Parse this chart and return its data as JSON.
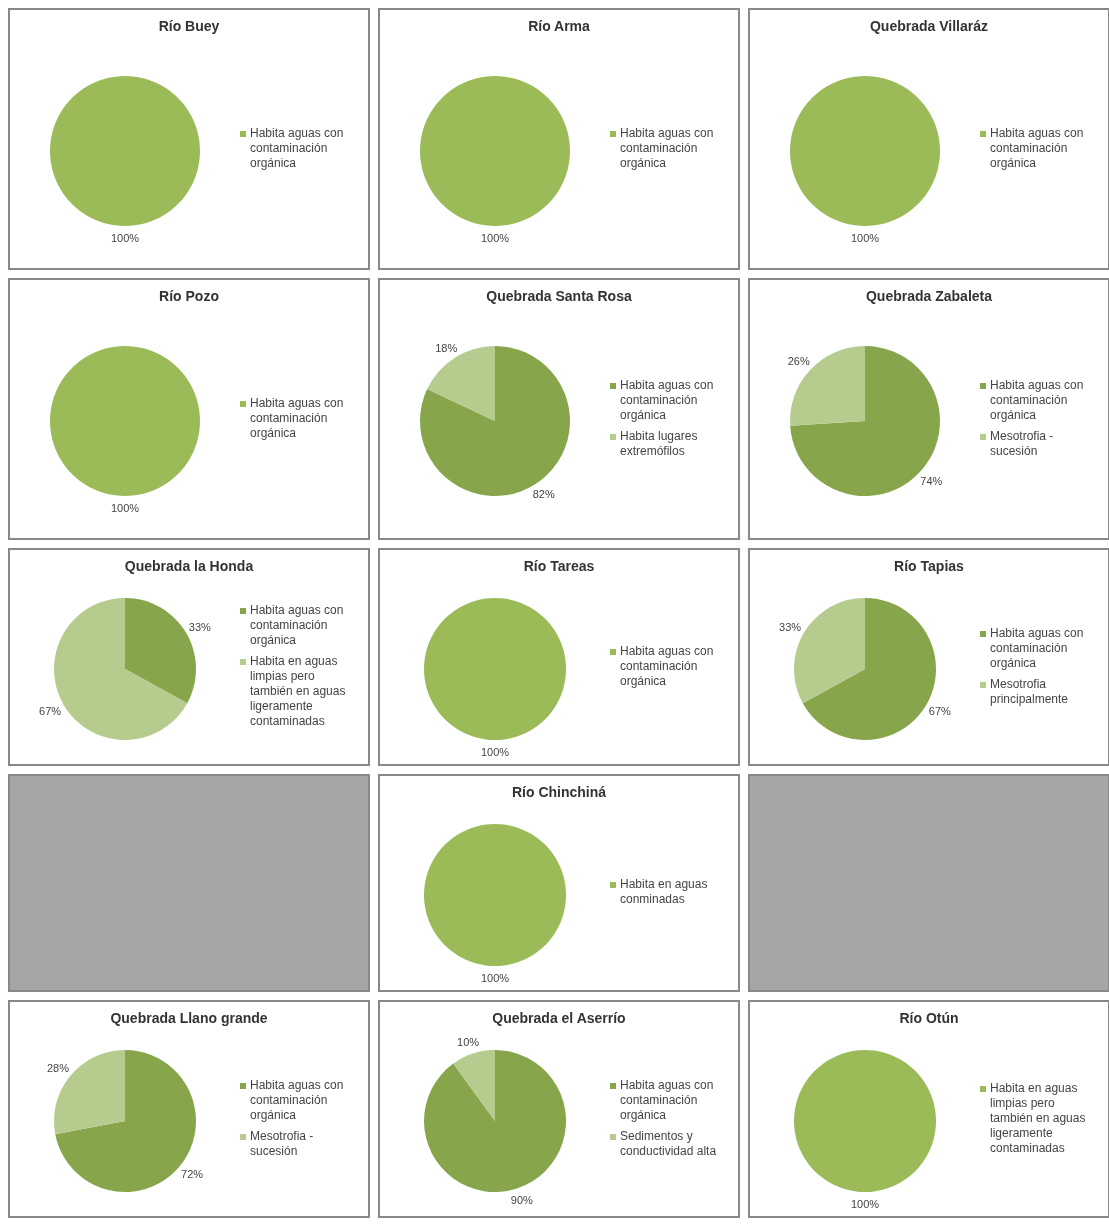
{
  "chart_data": [
    {
      "type": "pie",
      "title": "Río Buey",
      "categories": [
        "Habita aguas con contaminación orgánica"
      ],
      "values": [
        100
      ],
      "colors": [
        "#9bbb59"
      ],
      "value_labels": [
        "100%"
      ],
      "legend": "right"
    },
    {
      "type": "pie",
      "title": "Río Arma",
      "categories": [
        "Habita aguas con contaminación orgánica"
      ],
      "values": [
        100
      ],
      "colors": [
        "#9bbb59"
      ],
      "value_labels": [
        "100%"
      ],
      "legend": "right"
    },
    {
      "type": "pie",
      "title": "Quebrada Villaráz",
      "categories": [
        "Habita aguas con contaminación orgánica"
      ],
      "values": [
        100
      ],
      "colors": [
        "#9bbb59"
      ],
      "value_labels": [
        "100%"
      ],
      "legend": "right"
    },
    {
      "type": "pie",
      "title": "Río Pozo",
      "categories": [
        "Habita aguas con contaminación orgánica"
      ],
      "values": [
        100
      ],
      "colors": [
        "#9bbb59"
      ],
      "value_labels": [
        "100%"
      ],
      "legend": "right"
    },
    {
      "type": "pie",
      "title": "Quebrada Santa Rosa",
      "categories": [
        "Habita aguas con contaminación orgánica",
        "Habita lugares extremófilos"
      ],
      "values": [
        82,
        18
      ],
      "colors": [
        "#87a64b",
        "#b6cc8e"
      ],
      "value_labels": [
        "82%",
        "18%"
      ],
      "legend": "right"
    },
    {
      "type": "pie",
      "title": "Quebrada Zabaleta",
      "categories": [
        "Habita aguas con contaminación orgánica",
        "Mesotrofia - sucesión"
      ],
      "values": [
        74,
        26
      ],
      "colors": [
        "#87a64b",
        "#b6cc8e"
      ],
      "value_labels": [
        "74%",
        "26%"
      ],
      "legend": "right"
    },
    {
      "type": "pie",
      "title": "Quebrada la Honda",
      "categories": [
        "Habita aguas con contaminación orgánica",
        "Habita en aguas limpias pero también en aguas ligeramente contaminadas"
      ],
      "values": [
        33,
        67
      ],
      "colors": [
        "#87a64b",
        "#b6cc8e"
      ],
      "value_labels": [
        "33%",
        "67%"
      ],
      "legend": "right"
    },
    {
      "type": "pie",
      "title": "Río Tareas",
      "categories": [
        "Habita aguas con contaminación orgánica"
      ],
      "values": [
        100
      ],
      "colors": [
        "#9bbb59"
      ],
      "value_labels": [
        "100%"
      ],
      "legend": "right"
    },
    {
      "type": "pie",
      "title": "Río Tapias",
      "categories": [
        "Habita aguas con contaminación orgánica",
        "Mesotrofia principalmente"
      ],
      "values": [
        67,
        33
      ],
      "colors": [
        "#87a64b",
        "#b6cc8e"
      ],
      "value_labels": [
        "67%",
        "33%"
      ],
      "legend": "right"
    },
    {
      "type": "pie",
      "title": "Río Chinchiná",
      "categories": [
        "Habita en aguas conminadas"
      ],
      "values": [
        100
      ],
      "colors": [
        "#9bbb59"
      ],
      "value_labels": [
        "100%"
      ],
      "legend": "right"
    },
    {
      "type": "pie",
      "title": "Quebrada Llano grande",
      "categories": [
        "Habita aguas con contaminación orgánica",
        "Mesotrofia - sucesión"
      ],
      "values": [
        72,
        28
      ],
      "colors": [
        "#87a64b",
        "#b6cc8e"
      ],
      "value_labels": [
        "72%",
        "28%"
      ],
      "legend": "right"
    },
    {
      "type": "pie",
      "title": "Quebrada el Aserrío",
      "categories": [
        "Habita aguas con contaminación orgánica",
        "Sedimentos y conductividad alta"
      ],
      "values": [
        90,
        10
      ],
      "colors": [
        "#87a64b",
        "#b6cc8e"
      ],
      "value_labels": [
        "90%",
        "10%"
      ],
      "legend": "right"
    },
    {
      "type": "pie",
      "title": "Río Otún",
      "categories": [
        "Habita en aguas limpias pero también en aguas ligeramente contaminadas"
      ],
      "values": [
        100
      ],
      "colors": [
        "#9bbb59"
      ],
      "value_labels": [
        "100%"
      ],
      "legend": "right"
    }
  ]
}
